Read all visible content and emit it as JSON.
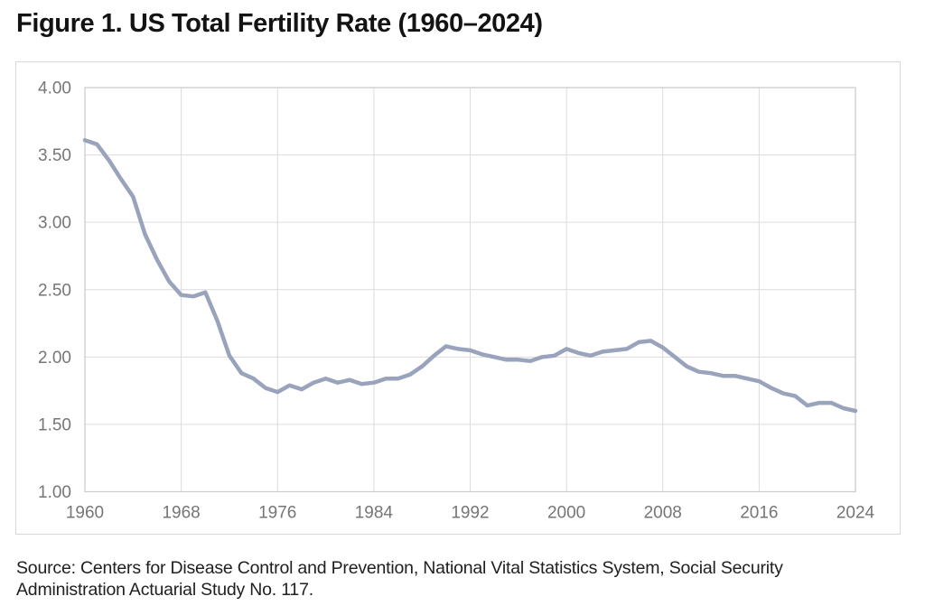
{
  "title": "Figure 1. US Total Fertility Rate (1960–2024)",
  "source": {
    "lines": [
      "Source: Centers for Disease Control and Prevention, National Vital Statistics System, Social Security",
      "Administration Actuarial Study No. 117."
    ]
  },
  "colors": {
    "line": "#99a3bc",
    "gridline": "#dcdcdc",
    "plot_frame": "#cccccc",
    "tick_label": "#767676"
  },
  "chart_data": {
    "type": "line",
    "title": "Figure 1. US Total Fertility Rate (1960–2024)",
    "xlabel": "",
    "ylabel": "",
    "xlim": [
      1960,
      2024
    ],
    "ylim": [
      1.0,
      4.0
    ],
    "grid": true,
    "legend": "none",
    "x_ticks": [
      1960,
      1968,
      1976,
      1984,
      1992,
      2000,
      2008,
      2016,
      2024
    ],
    "x_tick_labels": [
      "1960",
      "1968",
      "1976",
      "1984",
      "1992",
      "2000",
      "2008",
      "2016",
      "2024"
    ],
    "y_ticks": [
      1.0,
      1.5,
      2.0,
      2.5,
      3.0,
      3.5,
      4.0
    ],
    "y_tick_labels": [
      "1.00",
      "1.50",
      "2.00",
      "2.50",
      "3.00",
      "3.50",
      "4.00"
    ],
    "series": [
      {
        "name": "US Total Fertility Rate",
        "x": [
          1960,
          1961,
          1962,
          1963,
          1964,
          1965,
          1966,
          1967,
          1968,
          1969,
          1970,
          1971,
          1972,
          1973,
          1974,
          1975,
          1976,
          1977,
          1978,
          1979,
          1980,
          1981,
          1982,
          1983,
          1984,
          1985,
          1986,
          1987,
          1988,
          1989,
          1990,
          1991,
          1992,
          1993,
          1994,
          1995,
          1996,
          1997,
          1998,
          1999,
          2000,
          2001,
          2002,
          2003,
          2004,
          2005,
          2006,
          2007,
          2008,
          2009,
          2010,
          2011,
          2012,
          2013,
          2014,
          2015,
          2016,
          2017,
          2018,
          2019,
          2020,
          2021,
          2022,
          2023,
          2024
        ],
        "values": [
          3.61,
          3.58,
          3.46,
          3.32,
          3.19,
          2.91,
          2.72,
          2.56,
          2.46,
          2.45,
          2.48,
          2.27,
          2.01,
          1.88,
          1.84,
          1.77,
          1.74,
          1.79,
          1.76,
          1.81,
          1.84,
          1.81,
          1.83,
          1.8,
          1.81,
          1.84,
          1.84,
          1.87,
          1.93,
          2.01,
          2.08,
          2.06,
          2.05,
          2.02,
          2.0,
          1.98,
          1.98,
          1.97,
          2.0,
          2.01,
          2.06,
          2.03,
          2.01,
          2.04,
          2.05,
          2.06,
          2.11,
          2.12,
          2.07,
          2.0,
          1.93,
          1.89,
          1.88,
          1.86,
          1.86,
          1.84,
          1.82,
          1.77,
          1.73,
          1.71,
          1.64,
          1.66,
          1.66,
          1.62,
          1.6
        ]
      }
    ]
  }
}
